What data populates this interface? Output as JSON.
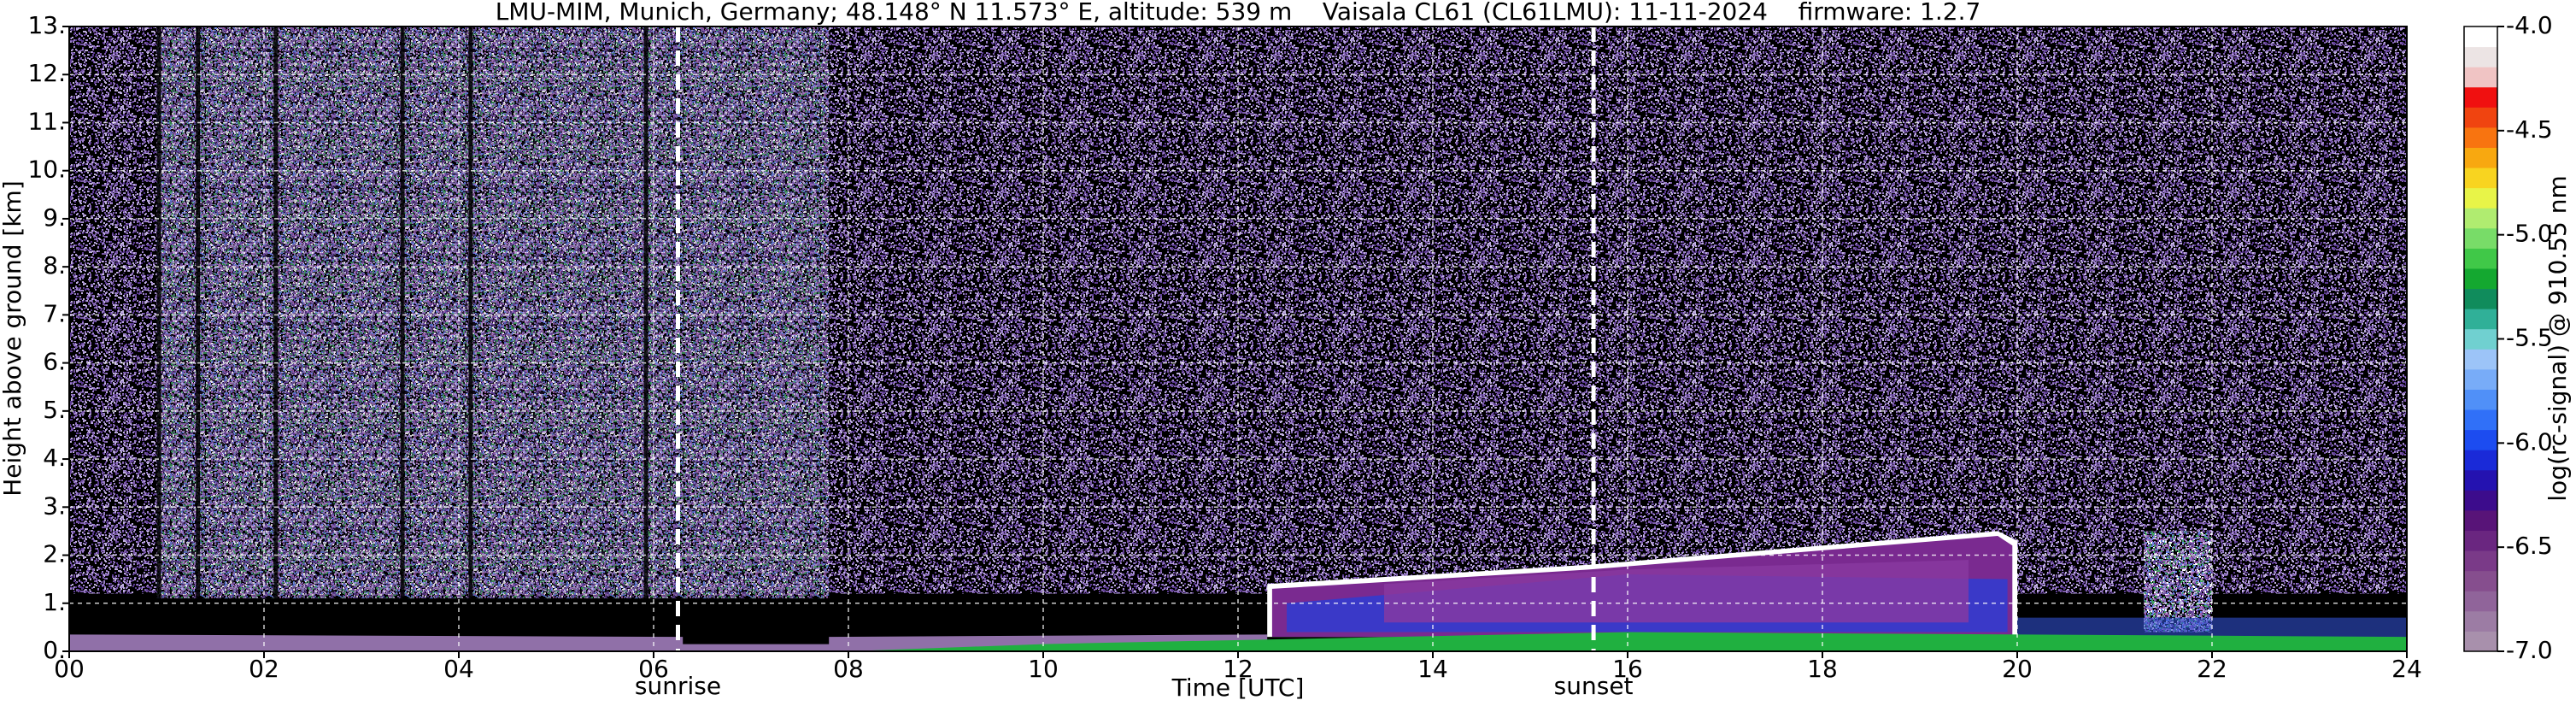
{
  "chart_data": {
    "type": "heatmap",
    "title": "LMU-MIM, Munich, Germany; 48.148° N 11.573° E, altitude: 539 m    Vaisala CL61 (CL61LMU): 11-11-2024    firmware: 1.2.7",
    "x_label": "Time [UTC]",
    "y_label": "Height above ground [km]",
    "xlim": [
      0,
      24
    ],
    "xticks": [
      {
        "value": 0,
        "label": "00"
      },
      {
        "value": 2,
        "label": "02"
      },
      {
        "value": 4,
        "label": "04"
      },
      {
        "value": 6,
        "label": "06"
      },
      {
        "value": 8,
        "label": "08"
      },
      10,
      12,
      14,
      16,
      18,
      20,
      22,
      24
    ],
    "ylim": [
      0,
      13
    ],
    "yticks": [
      {
        "value": 0,
        "label": "0."
      },
      {
        "value": 1,
        "label": "1."
      },
      {
        "value": 2,
        "label": "2."
      },
      {
        "value": 3,
        "label": "3."
      },
      {
        "value": 4,
        "label": "4."
      },
      {
        "value": 5,
        "label": "5."
      },
      {
        "value": 6,
        "label": "6."
      },
      {
        "value": 7,
        "label": "7."
      },
      {
        "value": 8,
        "label": "8."
      },
      {
        "value": 9,
        "label": "9."
      },
      {
        "value": 10,
        "label": "10."
      },
      {
        "value": 11,
        "label": "11."
      },
      {
        "value": 12,
        "label": "12."
      },
      {
        "value": 13,
        "label": "13."
      }
    ],
    "grid": true,
    "annotations": [
      {
        "text": "sunrise",
        "x": 6.25
      },
      {
        "text": "sunset",
        "x": 15.65
      }
    ],
    "colorbar": {
      "label": "log(rc-signal) @ 910.55 nm",
      "clim": [
        -7,
        -4
      ],
      "ticks": [
        {
          "value": -7,
          "label": "-7.0"
        },
        {
          "value": -6.5,
          "label": "-6.5"
        },
        {
          "value": -6,
          "label": "-6.0"
        },
        {
          "value": -5.5,
          "label": "-5.5"
        },
        {
          "value": -5,
          "label": "-5.0"
        },
        {
          "value": -4.5,
          "label": "-4.5"
        },
        {
          "value": -4,
          "label": "-4.0"
        }
      ],
      "colors": [
        "#a890ac",
        "#9c7ca4",
        "#90649a",
        "#864e8e",
        "#7a3a88",
        "#6a2680",
        "#581478",
        "#3c0c8c",
        "#2412b0",
        "#1a2ad8",
        "#1c4cf0",
        "#3070f8",
        "#5090f8",
        "#78acf8",
        "#9cc4f8",
        "#70d0d0",
        "#30b098",
        "#108c5c",
        "#14a830",
        "#40c848",
        "#78dc68",
        "#b0ec70",
        "#e8f448",
        "#f8d420",
        "#f8a810",
        "#f87410",
        "#f04410",
        "#f01010",
        "#f0c4c4",
        "#ece4e4",
        "#ffffff"
      ]
    }
  }
}
